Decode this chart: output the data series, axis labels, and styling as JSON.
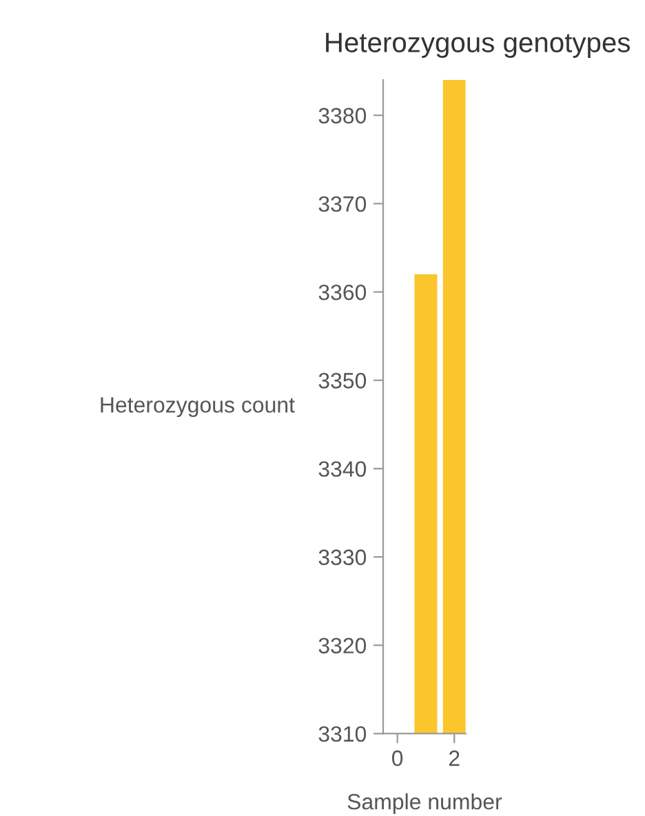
{
  "chart_data": {
    "type": "bar",
    "title": "Heterozygous genotypes",
    "xlabel": "Sample number",
    "ylabel": "Heterozygous count",
    "x": [
      1,
      2
    ],
    "values": [
      3362,
      3384
    ],
    "color": "#fbc62c",
    "xlim": [
      -0.5,
      2.4
    ],
    "xticks": [
      0,
      2
    ],
    "ylim": [
      3310,
      3384
    ],
    "yticks": [
      3310,
      3320,
      3330,
      3340,
      3350,
      3360,
      3370,
      3380
    ],
    "grid": false,
    "legend": false
  }
}
